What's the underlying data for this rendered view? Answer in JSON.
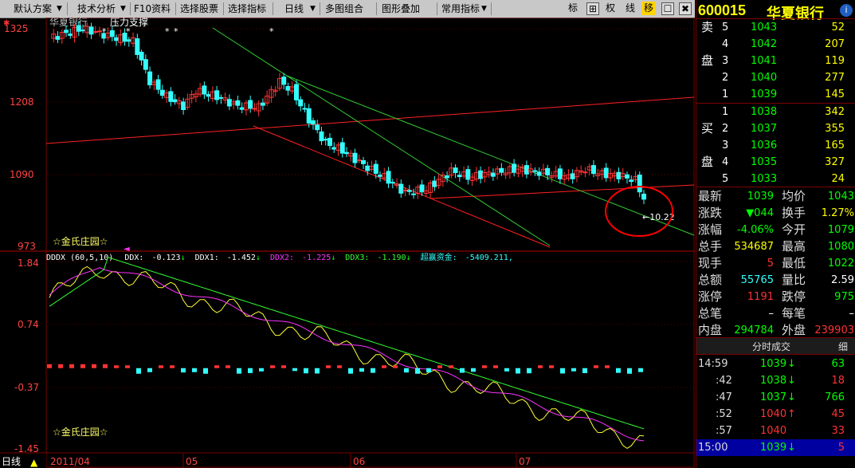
{
  "toolbar": {
    "items": [
      "默认方案",
      "技术分析",
      "F10资料",
      "选择股票",
      "选择指标",
      "日线",
      "多图组合",
      "图形叠加",
      "常用指标"
    ],
    "icons": [
      "标",
      "⊞",
      "权",
      "线",
      "移",
      "☐",
      "✖"
    ]
  },
  "chart": {
    "stock_name": "华夏银行",
    "indicator_tag": "压力支撑",
    "watermark": "☆金氏庄园☆",
    "price_labels": [
      "1325",
      "1208",
      "1090",
      "973"
    ],
    "last_marker": "←10.22",
    "ddx_header": {
      "name": "DDDX (60,5,10)",
      "items": [
        {
          "label": "DDX:",
          "value": "-0.123",
          "color": "#ffffff"
        },
        {
          "label": "DDX1:",
          "value": "-1.452",
          "color": "#ffffff"
        },
        {
          "label": "DDX2:",
          "value": "-1.225",
          "color": "#ff33ff"
        },
        {
          "label": "DDX3:",
          "value": "-1.190",
          "color": "#33ff33"
        },
        {
          "label": "超赢资金:",
          "value": "-5409.211",
          "color": "#33ffff"
        }
      ]
    },
    "ddx_labels": [
      "1.84",
      "0.74",
      "-0.37",
      "-1.45"
    ],
    "period": "日线",
    "date_labels": [
      "2011/04",
      "05",
      "06",
      "07"
    ]
  },
  "chart_data": {
    "type": "candlestick",
    "title": "华夏银行 日线",
    "price_ticks": [
      1325,
      1208,
      1090,
      973
    ],
    "ddx_ticks": [
      1.84,
      0.74,
      -0.37,
      -1.45
    ],
    "ddx_values": {
      "DDX": -0.123,
      "DDX1": -1.452,
      "DDX2": -1.225,
      "DDX3": -1.19,
      "超赢资金": -5409.211
    },
    "x_axis": [
      "2011/04",
      "05",
      "06",
      "07"
    ],
    "last_price_marker": 10.22
  },
  "quote": {
    "code": "600015",
    "name": "华夏银行",
    "sell": [
      {
        "side": "卖",
        "level": "5",
        "price": "1043",
        "vol": "52"
      },
      {
        "side": "",
        "level": "4",
        "price": "1042",
        "vol": "207"
      },
      {
        "side": "盘",
        "level": "3",
        "price": "1041",
        "vol": "119"
      },
      {
        "side": "",
        "level": "2",
        "price": "1040",
        "vol": "277"
      },
      {
        "side": "",
        "level": "1",
        "price": "1039",
        "vol": "145"
      }
    ],
    "buy": [
      {
        "side": "",
        "level": "1",
        "price": "1038",
        "vol": "342"
      },
      {
        "side": "买",
        "level": "2",
        "price": "1037",
        "vol": "355"
      },
      {
        "side": "",
        "level": "3",
        "price": "1036",
        "vol": "165"
      },
      {
        "side": "盘",
        "level": "4",
        "price": "1035",
        "vol": "327"
      },
      {
        "side": "",
        "level": "5",
        "price": "1033",
        "vol": "24"
      }
    ],
    "stats": [
      {
        "l1": "最新",
        "v1": "1039",
        "c1": "#00ff00",
        "l2": "均价",
        "v2": "1043",
        "c2": "#00ff00"
      },
      {
        "l1": "涨跌",
        "v1": "▼044",
        "c1": "#00ff00",
        "l2": "换手",
        "v2": "1.27%",
        "c2": "#ffff00"
      },
      {
        "l1": "涨幅",
        "v1": "-4.06%",
        "c1": "#00ff00",
        "l2": "今开",
        "v2": "1079",
        "c2": "#00ff00"
      },
      {
        "l1": "总手",
        "v1": "534687",
        "c1": "#ffff00",
        "l2": "最高",
        "v2": "1080",
        "c2": "#00ff00"
      },
      {
        "l1": "现手",
        "v1": "5",
        "c1": "#ff3333",
        "l2": "最低",
        "v2": "1022",
        "c2": "#00ff00"
      },
      {
        "l1": "总额",
        "v1": "55765",
        "c1": "#33ffff",
        "l2": "量比",
        "v2": "2.59",
        "c2": "#ffffff"
      },
      {
        "l1": "涨停",
        "v1": "1191",
        "c1": "#ff3333",
        "l2": "跌停",
        "v2": "975",
        "c2": "#00ff00"
      },
      {
        "l1": "总笔",
        "v1": "–",
        "c1": "#ffffff",
        "l2": "每笔",
        "v2": "–",
        "c2": "#ffffff"
      },
      {
        "l1": "内盘",
        "v1": "294784",
        "c1": "#00ff00",
        "l2": "外盘",
        "v2": "239903",
        "c2": "#ff3333"
      }
    ],
    "trades_title": "分时成交",
    "trades_detail": "细",
    "trades": [
      {
        "time": "14:59",
        "price": "1039",
        "arrow": "↓",
        "vol": "63",
        "ac": "#00ff00",
        "vc": "#00ff00"
      },
      {
        "time": ":42",
        "price": "1038",
        "arrow": "↓",
        "vol": "18",
        "ac": "#00ff00",
        "vc": "#ff3333"
      },
      {
        "time": ":47",
        "price": "1037",
        "arrow": "↓",
        "vol": "766",
        "ac": "#00ff00",
        "vc": "#00ff00"
      },
      {
        "time": ":52",
        "price": "1040",
        "arrow": "↑",
        "vol": "45",
        "ac": "#ff3333",
        "vc": "#ff3333"
      },
      {
        "time": ":57",
        "price": "1040",
        "arrow": "",
        "vol": "33",
        "ac": "#ff3333",
        "vc": "#ff3333"
      },
      {
        "time": "15:00",
        "price": "1039",
        "arrow": "↓",
        "vol": "5",
        "ac": "#00ff00",
        "vc": "#ff3333"
      }
    ]
  },
  "colors": {
    "up": "#ff3333",
    "down": "#33ffff",
    "grid": "#7a0000",
    "support_line": "#ff0000",
    "trend_line": "#33cc33"
  }
}
